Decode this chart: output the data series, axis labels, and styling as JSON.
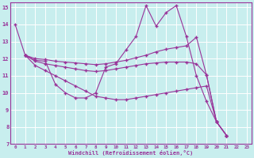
{
  "xlabel": "Windchill (Refroidissement éolien,°C)",
  "background_color": "#c8eeee",
  "grid_color": "#ffffff",
  "line_color": "#993399",
  "xlim": [
    -0.5,
    23.5
  ],
  "ylim": [
    7,
    15.3
  ],
  "xticks": [
    0,
    1,
    2,
    3,
    4,
    5,
    6,
    7,
    8,
    9,
    10,
    11,
    12,
    13,
    14,
    15,
    16,
    17,
    18,
    19,
    20,
    21,
    22,
    23
  ],
  "yticks": [
    7,
    8,
    9,
    10,
    11,
    12,
    13,
    14,
    15
  ],
  "series1_x": [
    0,
    1,
    2,
    3,
    4,
    5,
    6,
    7,
    8,
    9,
    10,
    11,
    12,
    13,
    14,
    15,
    16,
    17,
    18,
    19,
    20,
    21
  ],
  "series1_y": [
    14.0,
    12.2,
    11.9,
    11.85,
    10.5,
    10.0,
    9.7,
    9.7,
    10.0,
    11.5,
    11.7,
    12.5,
    13.3,
    15.1,
    13.9,
    14.7,
    15.1,
    13.3,
    11.0,
    9.5,
    8.3,
    7.5
  ],
  "series2_x": [
    1,
    2,
    3,
    4,
    5,
    6,
    7,
    8,
    9,
    10,
    11,
    12,
    13,
    14,
    15,
    16,
    17,
    18,
    19,
    20,
    21
  ],
  "series2_y": [
    12.2,
    12.0,
    11.95,
    11.85,
    11.8,
    11.75,
    11.7,
    11.65,
    11.7,
    11.8,
    11.9,
    12.05,
    12.2,
    12.4,
    12.55,
    12.65,
    12.75,
    13.25,
    11.05,
    8.3,
    7.5
  ],
  "series3_x": [
    1,
    2,
    3,
    4,
    5,
    6,
    7,
    8,
    9,
    10,
    11,
    12,
    13,
    14,
    15,
    16,
    17,
    18,
    19,
    20,
    21
  ],
  "series3_y": [
    12.2,
    11.85,
    11.7,
    11.6,
    11.5,
    11.4,
    11.3,
    11.25,
    11.3,
    11.4,
    11.5,
    11.6,
    11.7,
    11.75,
    11.8,
    11.8,
    11.8,
    11.7,
    11.05,
    8.3,
    7.5
  ],
  "series4_x": [
    1,
    2,
    3,
    4,
    5,
    6,
    7,
    8,
    9,
    10,
    11,
    12,
    13,
    14,
    15,
    16,
    17,
    18,
    19,
    20,
    21
  ],
  "series4_y": [
    12.2,
    11.6,
    11.3,
    11.0,
    10.7,
    10.4,
    10.1,
    9.8,
    9.7,
    9.6,
    9.6,
    9.7,
    9.8,
    9.9,
    10.0,
    10.1,
    10.2,
    10.3,
    10.4,
    8.3,
    7.5
  ]
}
